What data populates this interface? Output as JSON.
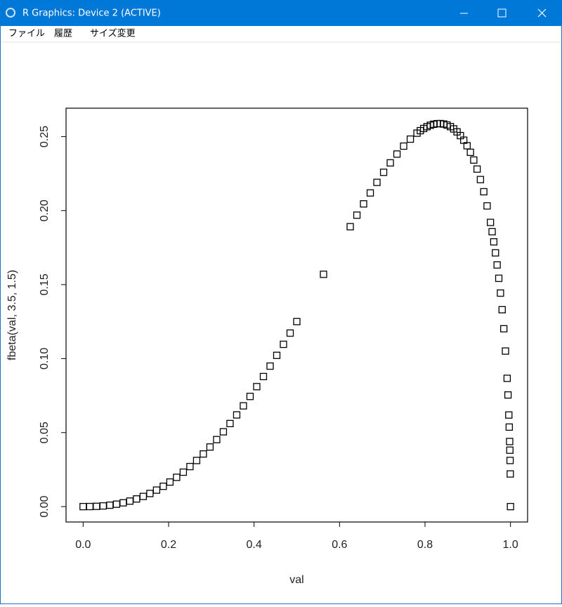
{
  "window": {
    "title": "R Graphics: Device 2 (ACTIVE)",
    "menu": [
      "ファイル",
      "履歴",
      "サイズ変更"
    ]
  },
  "chart_data": {
    "type": "scatter",
    "xlabel": "val",
    "ylabel": "fbeta(val, 3.5, 1.5)",
    "marker": "square",
    "color": "#000000",
    "x": [
      0,
      0.015625,
      0.03125,
      0.046875,
      0.0625,
      0.078125,
      0.09375,
      0.109375,
      0.125,
      0.140625,
      0.15625,
      0.171875,
      0.1875,
      0.203125,
      0.21875,
      0.234375,
      0.25,
      0.265625,
      0.28125,
      0.296875,
      0.3125,
      0.328125,
      0.34375,
      0.359375,
      0.375,
      0.390625,
      0.40625,
      0.421875,
      0.4375,
      0.453125,
      0.46875,
      0.484375,
      0.5,
      0.5625,
      0.625,
      0.640625,
      0.65625,
      0.671875,
      0.6875,
      0.703125,
      0.71875,
      0.734375,
      0.75,
      0.765625,
      0.78125,
      0.7890625,
      0.796875,
      0.8046875,
      0.8125,
      0.8203125,
      0.828125,
      0.8359375,
      0.84375,
      0.8515625,
      0.859375,
      0.8671875,
      0.875,
      0.8828125,
      0.890625,
      0.8984375,
      0.90625,
      0.9140625,
      0.921875,
      0.9296875,
      0.9375,
      0.9453125,
      0.953125,
      0.95703125,
      0.9609375,
      0.96484375,
      0.96875,
      0.97265625,
      0.9765625,
      0.98046875,
      0.984375,
      0.98828125,
      0.9921875,
      0.99414063,
      0.99609375,
      0.99707031,
      0.99804688,
      0.99853516,
      0.99902344,
      0.99951172,
      1
    ],
    "values": [
      0,
      3e-05,
      0.00017,
      0.00046,
      0.00095,
      0.00164,
      0.00256,
      0.00373,
      0.00517,
      0.00687,
      0.00886,
      0.01115,
      0.01372,
      0.0166,
      0.01978,
      0.02327,
      0.02706,
      0.03116,
      0.03557,
      0.04027,
      0.04526,
      0.05055,
      0.05612,
      0.06197,
      0.06808,
      0.07444,
      0.08106,
      0.08789,
      0.09494,
      0.1022,
      0.10966,
      0.11726,
      0.125,
      0.15696,
      0.18913,
      0.19693,
      0.20455,
      0.21195,
      0.21908,
      0.22589,
      0.23226,
      0.23821,
      0.24357,
      0.2483,
      0.25232,
      0.25401,
      0.25548,
      0.25671,
      0.25767,
      0.25835,
      0.25873,
      0.25879,
      0.25849,
      0.25782,
      0.25674,
      0.25521,
      0.25321,
      0.25068,
      0.24757,
      0.24383,
      0.23939,
      0.23417,
      0.22807,
      0.22098,
      0.21275,
      0.20318,
      0.19202,
      0.18573,
      0.1789,
      0.17145,
      0.16329,
      0.15429,
      0.14428,
      0.13303,
      0.12017,
      0.10511,
      0.08667,
      0.07543,
      0.06189,
      0.05373,
      0.04398,
      0.03813,
      0.03117,
      0.02207,
      0
    ],
    "xlim": [
      -0.04,
      1.04
    ],
    "ylim": [
      -0.0104,
      0.2692
    ],
    "xticks": [
      {
        "value": 0,
        "label": "0.0"
      },
      0.2,
      0.4,
      0.6,
      0.8,
      {
        "value": 1,
        "label": "1.0"
      }
    ],
    "yticks": [
      {
        "value": 0,
        "label": "0.00"
      },
      {
        "value": 0.05,
        "label": "0.05"
      },
      {
        "value": 0.1,
        "label": "0.10"
      },
      {
        "value": 0.15,
        "label": "0.15"
      },
      {
        "value": 0.2,
        "label": "0.20"
      },
      {
        "value": 0.25,
        "label": "0.25"
      }
    ]
  }
}
